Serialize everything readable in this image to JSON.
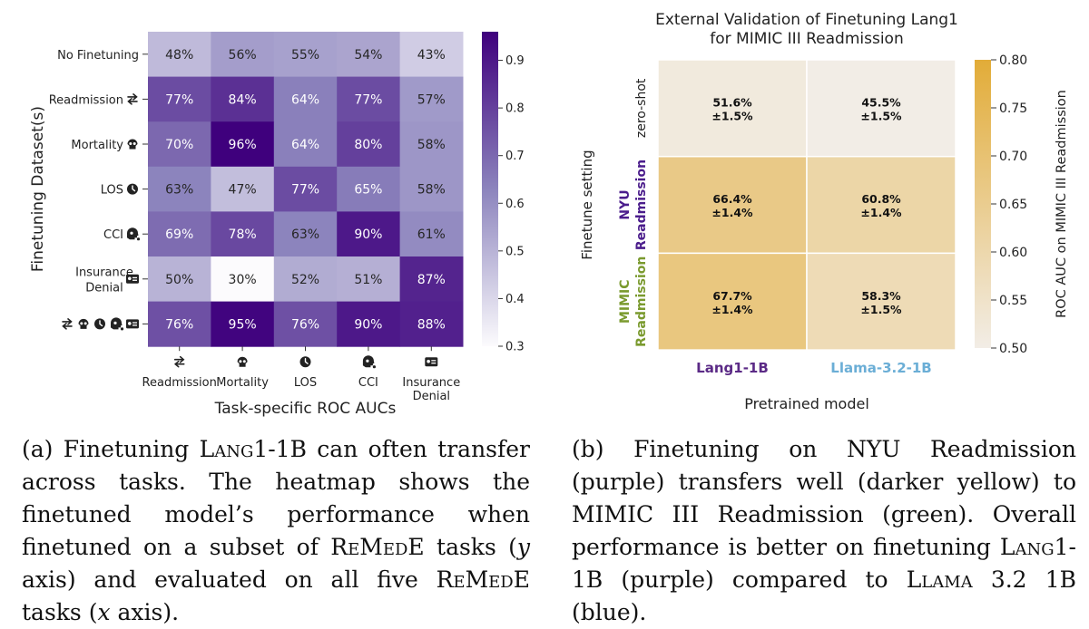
{
  "chart_data": [
    {
      "type": "heatmap",
      "xlabel": "Task-specific ROC AUCs",
      "ylabel": "Finetuning Dataset(s)",
      "x_tasks": [
        {
          "label": "Readmission",
          "icon": "arrows-exchange-icon"
        },
        {
          "label": "Mortality",
          "icon": "skull-icon"
        },
        {
          "label": "LOS",
          "icon": "clock-icon"
        },
        {
          "label": "CCI",
          "icon": "head-virus-icon"
        },
        {
          "label": "Insurance\nDenial",
          "icon": "id-card-icon"
        }
      ],
      "y_rows": [
        {
          "label": "No Finetuning",
          "icons": []
        },
        {
          "label": "Readmission",
          "icons": [
            "arrows-exchange-icon"
          ]
        },
        {
          "label": "Mortality",
          "icons": [
            "skull-icon"
          ]
        },
        {
          "label": "LOS",
          "icons": [
            "clock-icon"
          ]
        },
        {
          "label": "CCI",
          "icons": [
            "head-virus-icon"
          ]
        },
        {
          "label": "Insurance\nDenial",
          "icons": [
            "id-card-icon"
          ]
        },
        {
          "label": "",
          "icons": [
            "arrows-exchange-icon",
            "skull-icon",
            "clock-icon",
            "head-virus-icon",
            "id-card-icon"
          ]
        }
      ],
      "values": [
        [
          0.48,
          0.56,
          0.55,
          0.54,
          0.43
        ],
        [
          0.77,
          0.84,
          0.64,
          0.77,
          0.57
        ],
        [
          0.7,
          0.96,
          0.64,
          0.8,
          0.58
        ],
        [
          0.63,
          0.47,
          0.77,
          0.65,
          0.58
        ],
        [
          0.69,
          0.78,
          0.63,
          0.9,
          0.61
        ],
        [
          0.5,
          0.3,
          0.52,
          0.51,
          0.87
        ],
        [
          0.76,
          0.95,
          0.76,
          0.9,
          0.88
        ]
      ],
      "cell_labels": [
        [
          "48%",
          "56%",
          "55%",
          "54%",
          "43%"
        ],
        [
          "77%",
          "84%",
          "64%",
          "77%",
          "57%"
        ],
        [
          "70%",
          "96%",
          "64%",
          "80%",
          "58%"
        ],
        [
          "63%",
          "47%",
          "77%",
          "65%",
          "58%"
        ],
        [
          "69%",
          "78%",
          "63%",
          "90%",
          "61%"
        ],
        [
          "50%",
          "30%",
          "52%",
          "51%",
          "87%"
        ],
        [
          "76%",
          "95%",
          "76%",
          "90%",
          "88%"
        ]
      ],
      "colorbar": {
        "min": 0.3,
        "max": 0.96,
        "ticks": [
          0.3,
          0.4,
          0.5,
          0.6,
          0.7,
          0.8,
          0.9
        ],
        "tick_labels": [
          "0.3",
          "0.4",
          "0.5",
          "0.6",
          "0.7",
          "0.8",
          "0.9"
        ]
      },
      "cmap": {
        "low": "#fcfbfd",
        "mid": "#8c84bd",
        "high": "#3f007d"
      }
    },
    {
      "type": "heatmap",
      "title": "External Validation of Finetuning Lang1\nfor MIMIC III Readmission",
      "xlabel": "Pretrained model",
      "ylabel": "Finetune setting",
      "x_categories": [
        {
          "label": "Lang1-1B",
          "color": "#5b2a86"
        },
        {
          "label": "Llama-3.2-1B",
          "color": "#6baed6"
        }
      ],
      "y_categories": [
        {
          "lines": [
            "zero-shot"
          ],
          "colors": [
            "#222222"
          ]
        },
        {
          "lines": [
            "NYU",
            "Readmission"
          ],
          "colors": [
            "#4b1d8c",
            "#4b1d8c"
          ]
        },
        {
          "lines": [
            "MIMIC",
            "Readmission"
          ],
          "colors": [
            "#7a9a2e",
            "#7a9a2e"
          ]
        }
      ],
      "values": [
        [
          0.516,
          0.455
        ],
        [
          0.664,
          0.608
        ],
        [
          0.677,
          0.583
        ]
      ],
      "cell_labels": [
        [
          "51.6%\n±1.5%",
          "45.5%\n±1.5%"
        ],
        [
          "66.4%\n±1.4%",
          "60.8%\n±1.4%"
        ],
        [
          "67.7%\n±1.4%",
          "58.3%\n±1.5%"
        ]
      ],
      "colorbar": {
        "min": 0.5,
        "max": 0.8,
        "ticks": [
          0.5,
          0.55,
          0.6,
          0.65,
          0.7,
          0.75,
          0.8
        ],
        "tick_labels": [
          "0.50",
          "0.55",
          "0.60",
          "0.65",
          "0.70",
          "0.75",
          "0.80"
        ],
        "label": "ROC AUC on MIMIC III Readmission"
      },
      "cmap": {
        "low": "#f2ede6",
        "high": "#e2ac38"
      }
    }
  ],
  "captions": {
    "a": {
      "prefix": "(a) Finetuning ",
      "model": "Lang1",
      "rest1": "-1B can often transfer across tasks. The heatmap shows the finetuned model’s performance when finetuned on a subset of ",
      "remede1": "ReMedE",
      "rest2": " tasks (",
      "ax1": "y",
      "rest3": " axis) and evaluated on all five ",
      "remede2": "ReMedE",
      "rest4": " tasks (",
      "ax2": "x",
      "rest5": " axis)."
    },
    "b": {
      "part1": "(b) Finetuning on NYU Readmission (purple) transfers well (darker yellow) to MIMIC III Readmission (green). Overall performance is better on finetuning ",
      "model1": "Lang1",
      "part2": "-1B (purple) compared to ",
      "model2": "Llama",
      "part3": " 3.2 1B (blue)."
    }
  }
}
